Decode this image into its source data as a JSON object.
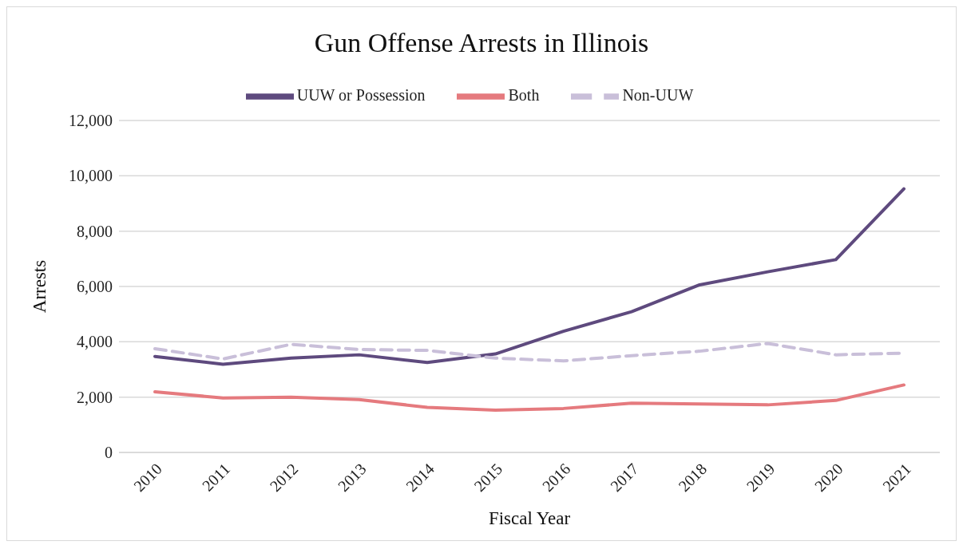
{
  "chart_data": {
    "type": "line",
    "title": "Gun Offense Arrests in Illinois",
    "xlabel": "Fiscal Year",
    "ylabel": "Arrests",
    "categories": [
      "2010",
      "2011",
      "2012",
      "2013",
      "2014",
      "2015",
      "2016",
      "2017",
      "2018",
      "2019",
      "2020",
      "2021"
    ],
    "series": [
      {
        "name": "UUW or Possession",
        "color": "#5e4a7e",
        "values": [
          3470,
          3190,
          3410,
          3530,
          3250,
          3560,
          4380,
          5090,
          6060,
          6530,
          6970,
          9530
        ]
      },
      {
        "name": "Both",
        "color": "#e57a7e",
        "values": [
          2190,
          1970,
          2000,
          1910,
          1630,
          1530,
          1590,
          1780,
          1750,
          1720,
          1880,
          2440
        ]
      },
      {
        "name": "Non-UUW",
        "color": "#c9bfd9",
        "line_style": "dashed",
        "values": [
          3750,
          3380,
          3910,
          3720,
          3690,
          3410,
          3310,
          3500,
          3660,
          3940,
          3530,
          3590
        ]
      }
    ],
    "ylim": [
      0,
      12000
    ],
    "yticks": [
      0,
      {
        "value": 2000,
        "label": "2,000"
      },
      {
        "value": 4000,
        "label": "4,000"
      },
      {
        "value": 6000,
        "label": "6,000"
      },
      {
        "value": 8000,
        "label": "8,000"
      },
      {
        "value": 10000,
        "label": "10,000"
      },
      {
        "value": 12000,
        "label": "12,000"
      }
    ],
    "grid": "y",
    "legend": "top",
    "marker": "none",
    "line_style": "solid"
  }
}
